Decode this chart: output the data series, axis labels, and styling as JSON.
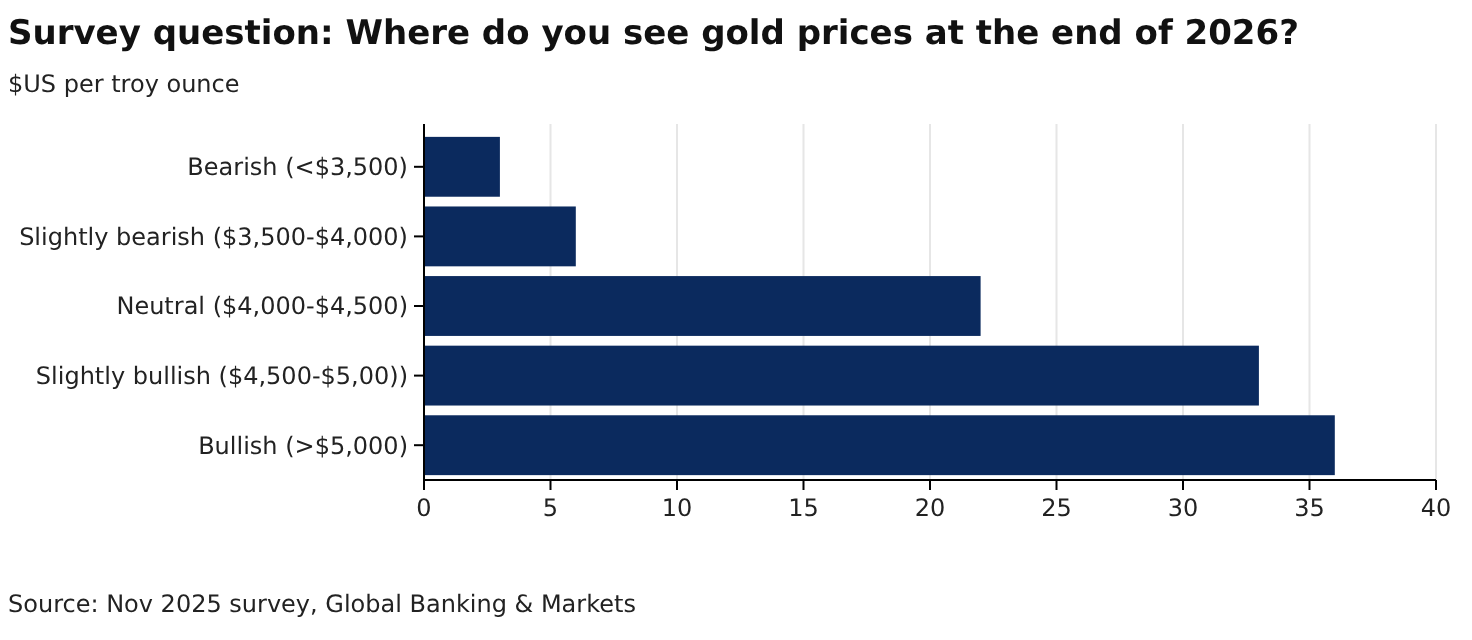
{
  "chart_data": {
    "type": "bar",
    "orientation": "horizontal",
    "title": "Survey question: Where do you see gold prices at the end of 2026?",
    "subtitle": "$US per troy ounce",
    "categories": [
      "Bearish (<$3,500)",
      "Slightly bearish ($3,500-$4,000)",
      "Neutral ($4,000-$4,500)",
      "Slightly bullish ($4,500-$5,00))",
      "Bullish (>$5,000)"
    ],
    "values": [
      3,
      6,
      22,
      33,
      36
    ],
    "color": "#0b2a5e",
    "xlim": [
      0,
      40
    ],
    "xticks": [
      0,
      5,
      10,
      15,
      20,
      25,
      30,
      35,
      40
    ],
    "grid": "x",
    "annotations": [
      "Source: Nov 2025 survey, Global Banking & Markets"
    ]
  }
}
